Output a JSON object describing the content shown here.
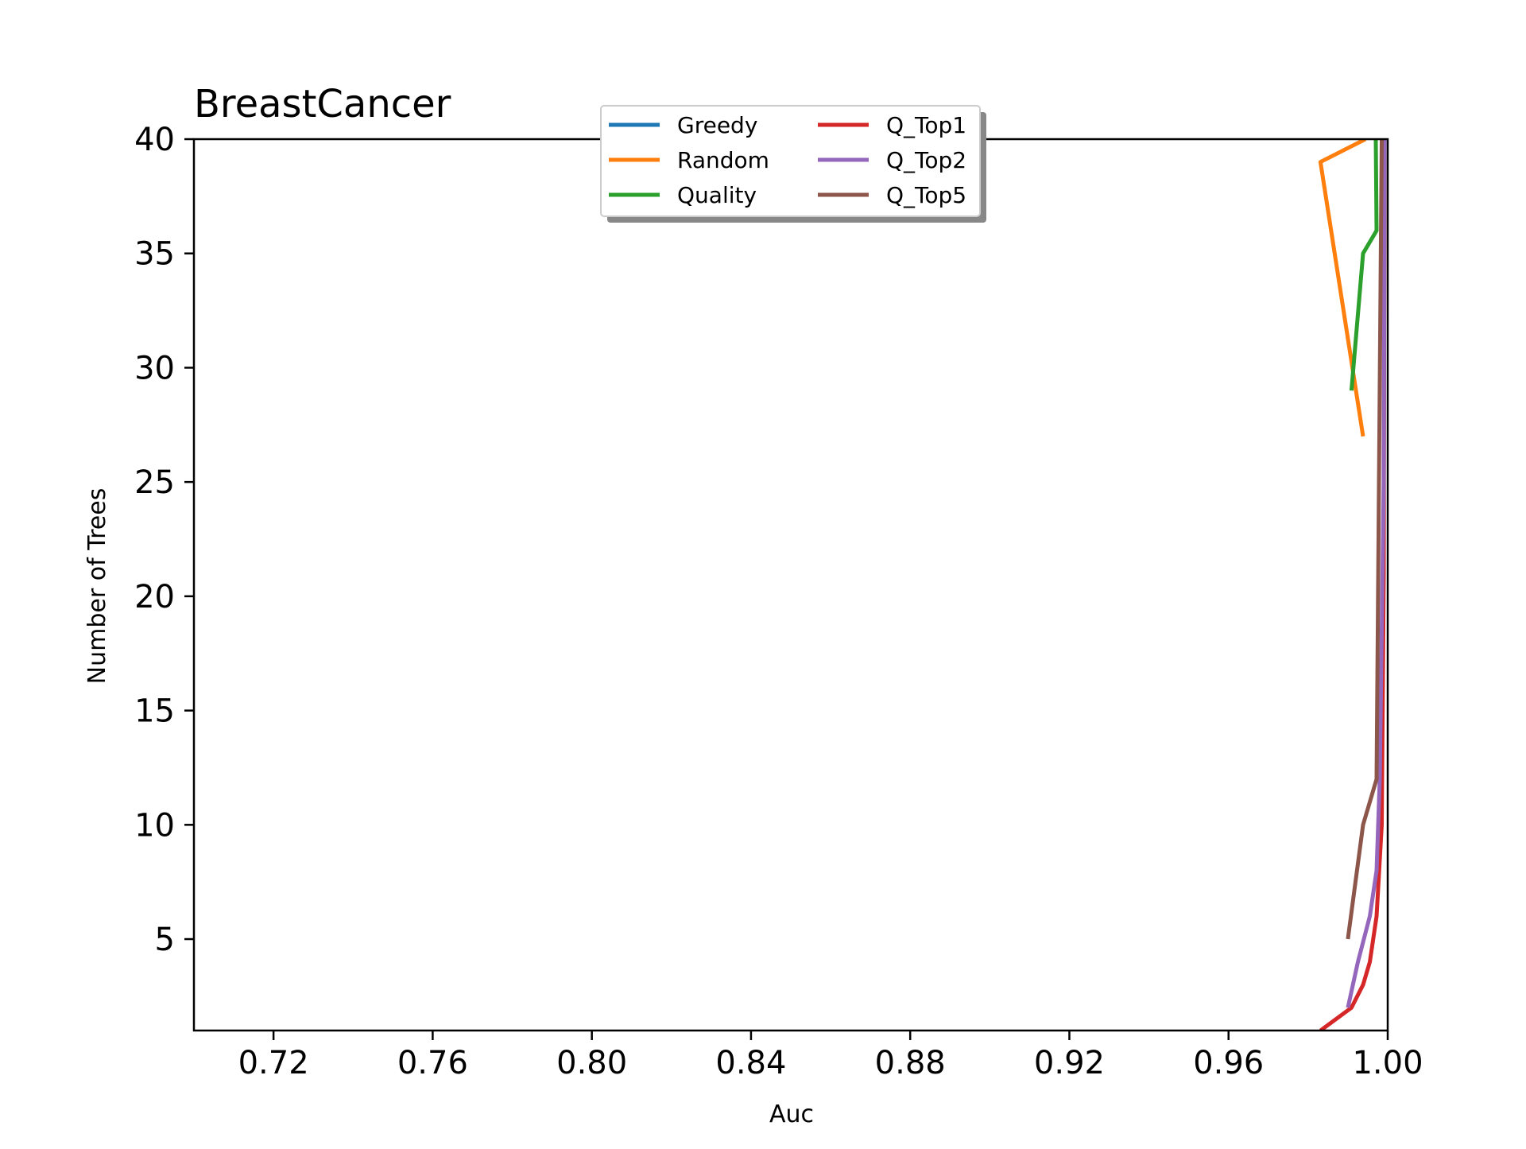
{
  "chart_data": {
    "type": "line",
    "title": "BreastCancer",
    "xlabel": "Auc",
    "ylabel": "Number of Trees",
    "xlim": [
      0.7,
      1.0
    ],
    "ylim": [
      1,
      40
    ],
    "xticks": [
      0.72,
      0.76,
      0.8,
      0.84,
      0.88,
      0.92,
      0.96,
      1.0
    ],
    "xtick_labels": [
      "0.72",
      "0.76",
      "0.80",
      "0.84",
      "0.88",
      "0.92",
      "0.96",
      "1.00"
    ],
    "yticks": [
      5,
      10,
      15,
      20,
      25,
      30,
      35,
      40
    ],
    "ytick_labels": [
      "5",
      "10",
      "15",
      "20",
      "25",
      "30",
      "35",
      "40"
    ],
    "grid": false,
    "legend": {
      "placement": "upper-center",
      "columns": 2,
      "shadow": true
    },
    "series": [
      {
        "name": "Greedy",
        "color": "#1f77b4",
        "points": []
      },
      {
        "name": "Random",
        "color": "#ff7f0e",
        "points": [
          [
            0.9938,
            27
          ],
          [
            0.9831,
            39
          ],
          [
            0.9944,
            40
          ]
        ]
      },
      {
        "name": "Quality",
        "color": "#2ca02c",
        "points": [
          [
            0.9909,
            29
          ],
          [
            0.9938,
            35
          ],
          [
            0.9972,
            36
          ],
          [
            0.997,
            40
          ]
        ]
      },
      {
        "name": "Q_Top1",
        "color": "#d62728",
        "points": [
          [
            0.9831,
            1
          ],
          [
            0.9909,
            2
          ],
          [
            0.9938,
            3
          ],
          [
            0.9955,
            4
          ],
          [
            0.9972,
            6
          ],
          [
            0.9985,
            10
          ],
          [
            0.999,
            21
          ],
          [
            0.9992,
            40
          ]
        ]
      },
      {
        "name": "Q_Top2",
        "color": "#9467bd",
        "points": [
          [
            0.99,
            2
          ],
          [
            0.9925,
            4
          ],
          [
            0.9955,
            6
          ],
          [
            0.9972,
            8
          ],
          [
            0.998,
            12
          ],
          [
            0.999,
            25
          ],
          [
            0.9992,
            40
          ]
        ]
      },
      {
        "name": "Q_Top5",
        "color": "#8c564b",
        "points": [
          [
            0.99,
            5
          ],
          [
            0.9938,
            10
          ],
          [
            0.9972,
            12
          ],
          [
            0.9985,
            40
          ]
        ]
      }
    ]
  }
}
